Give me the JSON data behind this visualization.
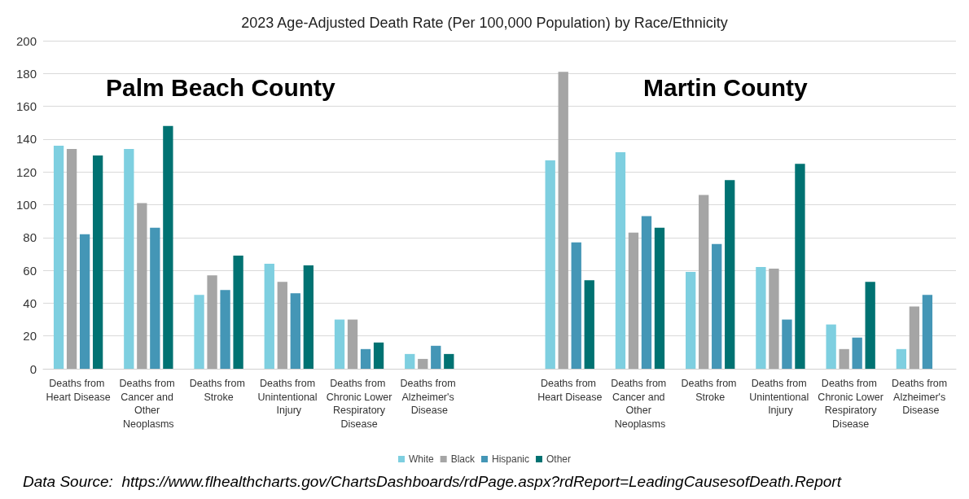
{
  "chart_data": {
    "type": "bar",
    "title": "2023 Age-Adjusted Death Rate (Per 100,000 Population) by Race/Ethnicity",
    "categories": [
      "Deaths from Heart Disease",
      "Deaths from Cancer and Other Neoplasms",
      "Deaths from Stroke",
      "Deaths from Unintentional Injury",
      "Deaths from Chronic Lower Respiratory Disease",
      "Deaths from Alzheimer's Disease",
      null,
      "Deaths from Heart Disease",
      "Deaths from Cancer and Other Neoplasms",
      "Deaths from Stroke",
      "Deaths from Unintentional Injury",
      "Deaths from Chronic Lower Respiratory Disease",
      "Deaths from Alzheimer's Disease"
    ],
    "series": [
      {
        "name": "White",
        "color": "#7ecfe0",
        "values": [
          136,
          134,
          45,
          64,
          30,
          9,
          null,
          127,
          132,
          59,
          62,
          27,
          12
        ]
      },
      {
        "name": "Black",
        "color": "#a5a5a5",
        "values": [
          134,
          101,
          57,
          53,
          30,
          6,
          null,
          181,
          83,
          106,
          61,
          12,
          38
        ]
      },
      {
        "name": "Hispanic",
        "color": "#4496b6",
        "values": [
          82,
          86,
          48,
          46,
          12,
          14,
          null,
          77,
          93,
          76,
          30,
          19,
          45
        ]
      },
      {
        "name": "Other",
        "color": "#007272",
        "values": [
          130,
          148,
          69,
          63,
          16,
          9,
          null,
          54,
          86,
          115,
          125,
          53,
          null
        ]
      }
    ],
    "ylim": [
      0,
      200
    ],
    "yticks": [
      0,
      20,
      40,
      60,
      80,
      100,
      120,
      140,
      160,
      180,
      200
    ],
    "grid": "y",
    "legend": "bottom",
    "annotations": [
      "Palm Beach County",
      "Martin County",
      "Data Source:  https://www.flhealthcharts.gov/ChartsDashboards/rdPage.aspx?rdReport=LeadingCausesofDeath.Report"
    ]
  }
}
